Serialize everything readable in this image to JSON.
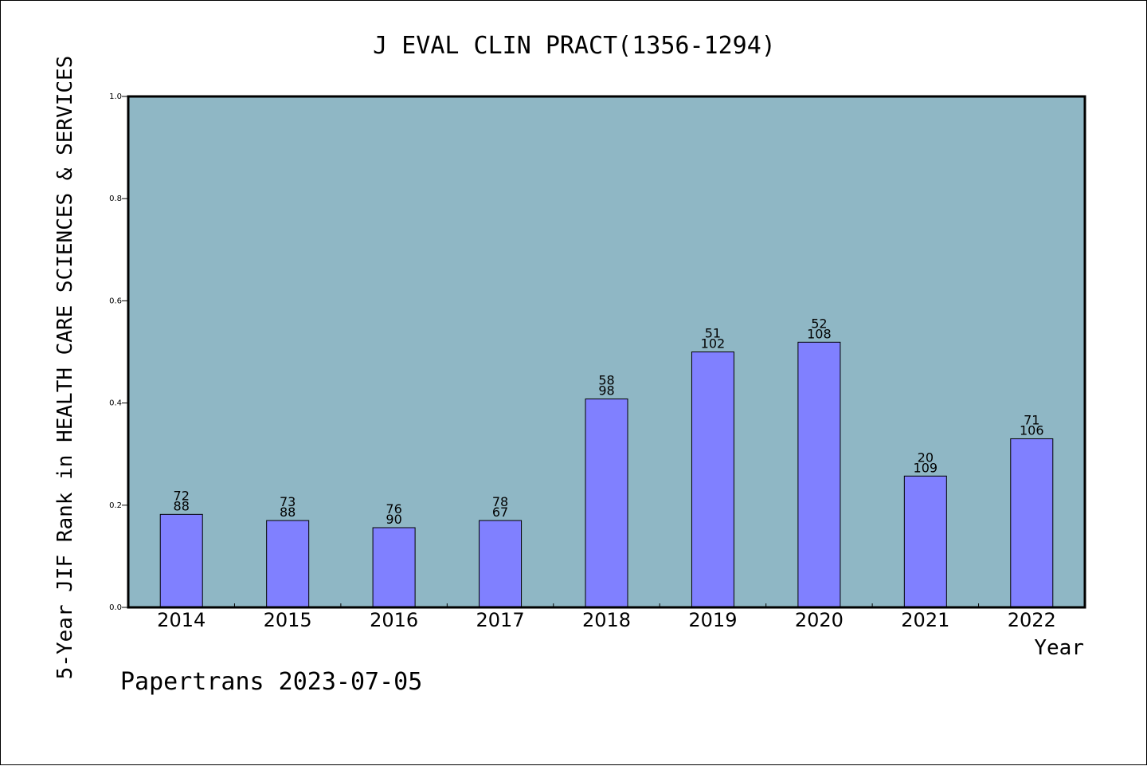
{
  "chart_data": {
    "type": "bar",
    "title": "J EVAL CLIN PRACT(1356-1294)",
    "xlabel": "Year",
    "ylabel": "5-Year JIF Rank in HEALTH CARE SCIENCES & SERVICES",
    "footer": "Papertrans 2023-07-05",
    "ylim": [
      0,
      1.0
    ],
    "yticks": [
      "0.0",
      "0.2",
      "0.4",
      "0.6",
      "0.8",
      "1.0"
    ],
    "categories": [
      "2014",
      "2015",
      "2016",
      "2017",
      "2018",
      "2019",
      "2020",
      "2021",
      "2022"
    ],
    "values": [
      0.182,
      0.17,
      0.156,
      0.17,
      0.408,
      0.5,
      0.519,
      0.257,
      0.33
    ],
    "labels_top": [
      "72",
      "73",
      "76",
      "78",
      "58",
      "51",
      "52",
      "20",
      "71"
    ],
    "labels_bottom": [
      "88",
      "88",
      "90",
      "67",
      "98",
      "102",
      "108",
      "109",
      "106"
    ],
    "grid": false,
    "colors": {
      "plot_background": "#8fb7c5",
      "bar_fill": "#8080ff",
      "bar_stroke": "#000000"
    }
  }
}
